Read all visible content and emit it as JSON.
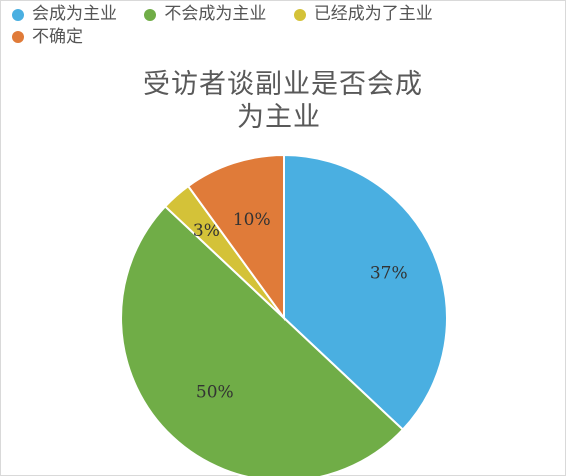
{
  "chart_data": {
    "type": "pie",
    "title_line1": "受访者谈副业是否会成",
    "title_line2": "为主业",
    "legend_position": "top",
    "slices": [
      {
        "name": "会成为主业",
        "value": 37,
        "label": "37%",
        "color": "#4aafe1"
      },
      {
        "name": "不会成为主业",
        "value": 50,
        "label": "50%",
        "color": "#70ad47"
      },
      {
        "name": "已经成为了主业",
        "value": 3,
        "label": "3%",
        "color": "#d4c238"
      },
      {
        "name": "不确定",
        "value": 10,
        "label": "10%",
        "color": "#e07b39"
      }
    ]
  }
}
